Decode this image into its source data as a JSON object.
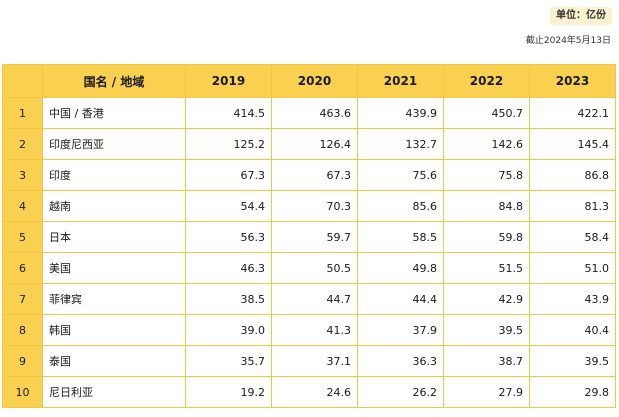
{
  "unit_label": "单位：亿份",
  "as_of": "截止2024年5月13日",
  "table": {
    "headers": [
      "",
      "国名 / 地域",
      "2019",
      "2020",
      "2021",
      "2022",
      "2023"
    ],
    "rows": [
      {
        "rank": "1",
        "name": "中国 / 香港",
        "values": [
          "414.5",
          "463.6",
          "439.9",
          "450.7",
          "422.1"
        ]
      },
      {
        "rank": "2",
        "name": "印度尼西亚",
        "values": [
          "125.2",
          "126.4",
          "132.7",
          "142.6",
          "145.4"
        ]
      },
      {
        "rank": "3",
        "name": "印度",
        "values": [
          "67.3",
          "67.3",
          "75.6",
          "75.8",
          "86.8"
        ]
      },
      {
        "rank": "4",
        "name": "越南",
        "values": [
          "54.4",
          "70.3",
          "85.6",
          "84.8",
          "81.3"
        ]
      },
      {
        "rank": "5",
        "name": "日本",
        "values": [
          "56.3",
          "59.7",
          "58.5",
          "59.8",
          "58.4"
        ]
      },
      {
        "rank": "6",
        "name": "美国",
        "values": [
          "46.3",
          "50.5",
          "49.8",
          "51.5",
          "51.0"
        ]
      },
      {
        "rank": "7",
        "name": "菲律宾",
        "values": [
          "38.5",
          "44.7",
          "44.4",
          "42.9",
          "43.9"
        ]
      },
      {
        "rank": "8",
        "name": "韩国",
        "values": [
          "39.0",
          "41.3",
          "37.9",
          "39.5",
          "40.4"
        ]
      },
      {
        "rank": "9",
        "name": "泰国",
        "values": [
          "35.7",
          "37.1",
          "36.3",
          "38.7",
          "39.5"
        ]
      },
      {
        "rank": "10",
        "name": "尼日利亚",
        "values": [
          "19.2",
          "24.6",
          "26.2",
          "27.9",
          "29.8"
        ]
      }
    ]
  },
  "colors": {
    "header_bg": "#f9d04f",
    "border": "#f2c744",
    "badge_bg": "#fbf3d0"
  }
}
